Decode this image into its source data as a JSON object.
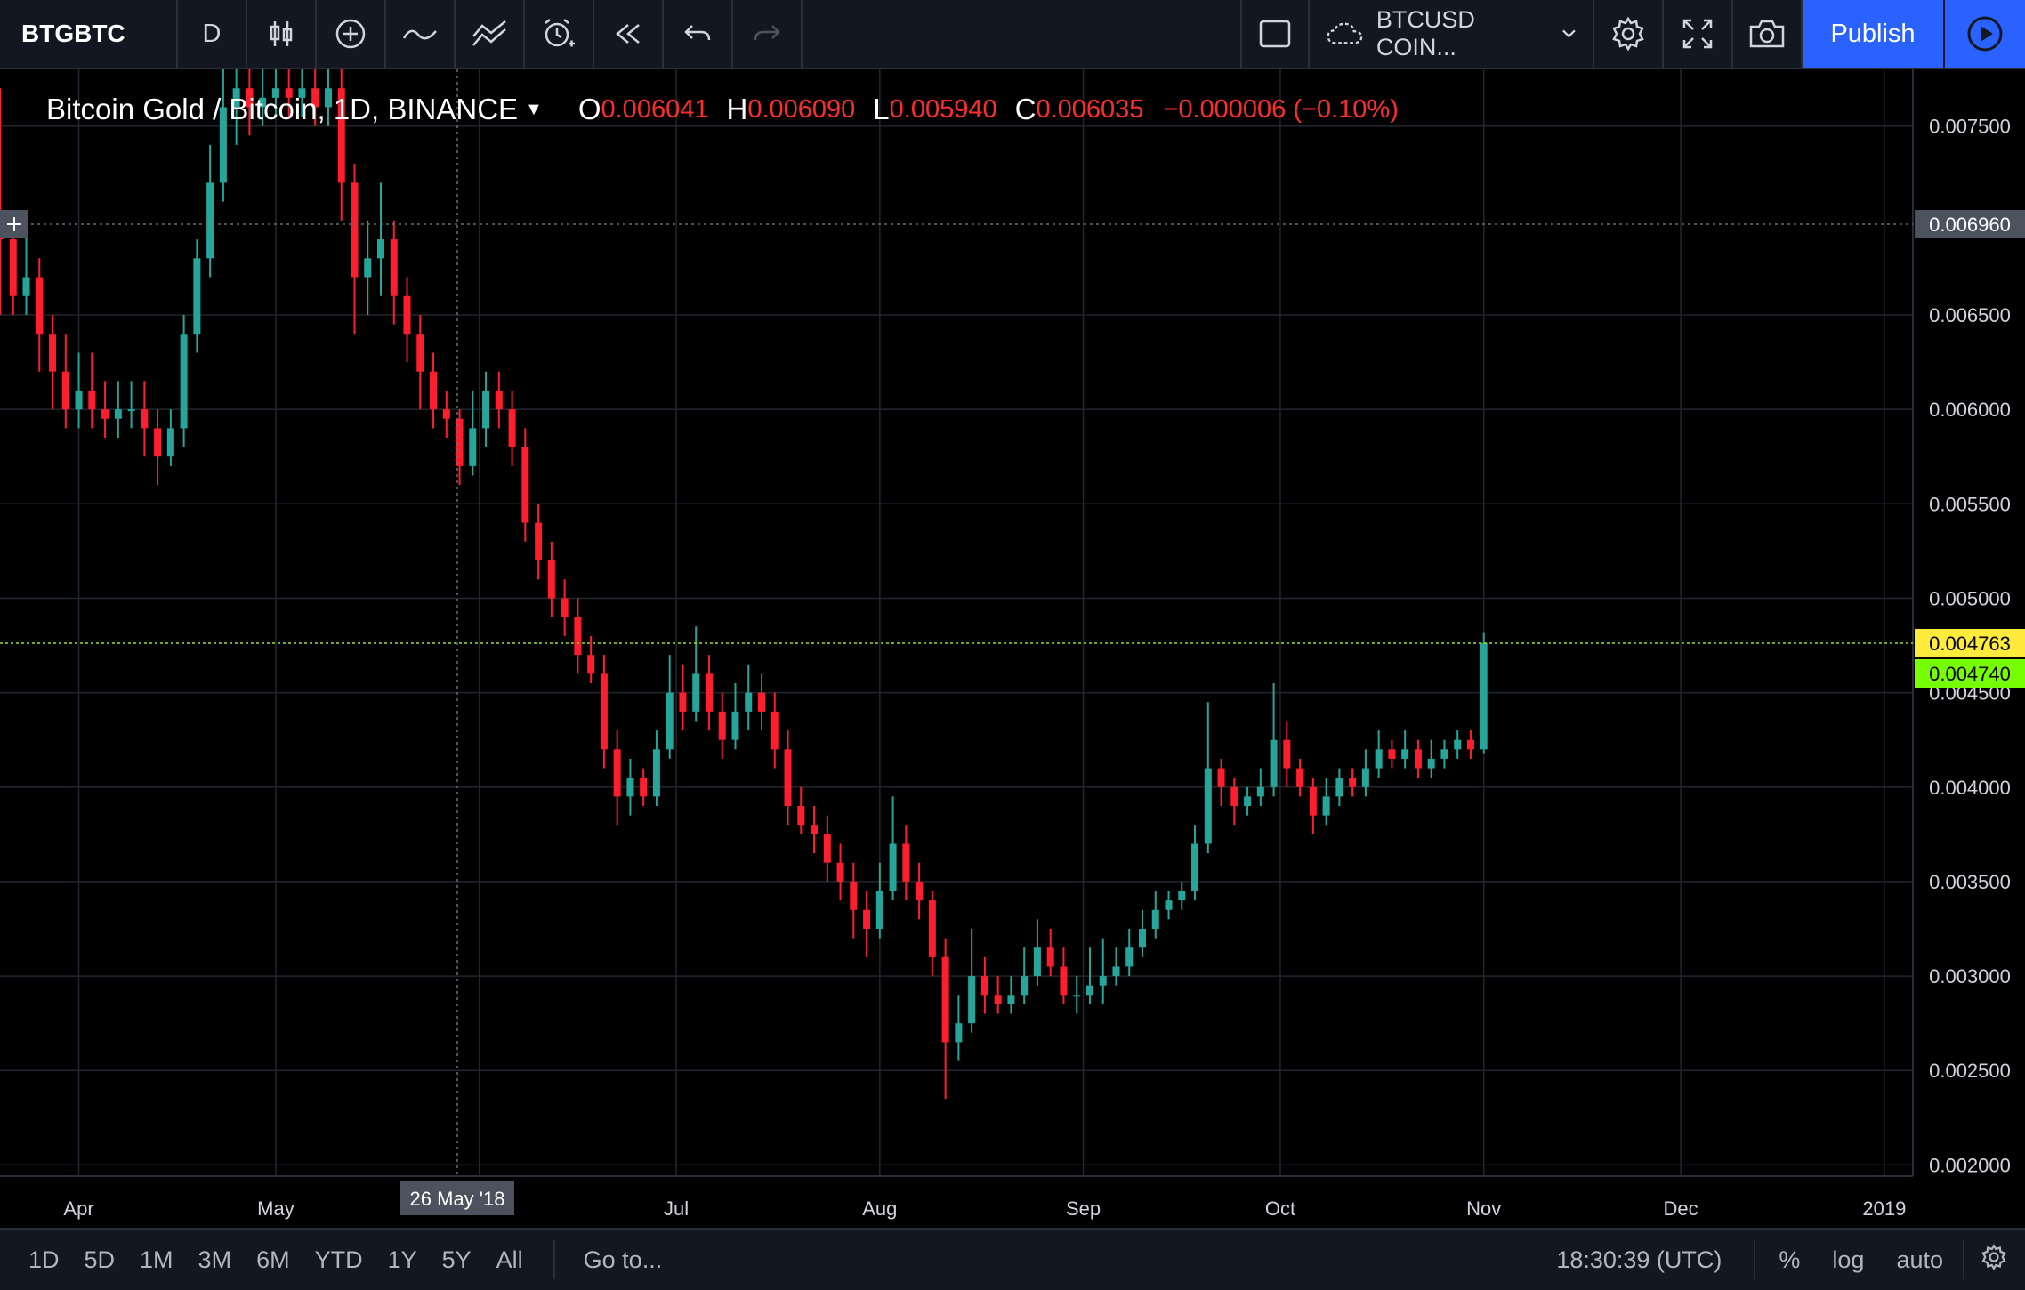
{
  "toolbar": {
    "symbol": "BTGBTC",
    "interval": "D",
    "compare_symbol": "BTCUSD COIN...",
    "publish_label": "Publish"
  },
  "legend": {
    "title": "Bitcoin Gold / Bitcoin, 1D, BINANCE",
    "open_label": "O",
    "open": "0.006041",
    "high_label": "H",
    "high": "0.006090",
    "low_label": "L",
    "low": "0.005940",
    "close_label": "C",
    "close": "0.006035",
    "change": "−0.000006 (−0.10%)"
  },
  "price_axis": {
    "ticks": [
      "0.007500",
      "0.006500",
      "0.006000",
      "0.005500",
      "0.005000",
      "0.004500",
      "0.004000",
      "0.003500",
      "0.003000",
      "0.002500",
      "0.002000"
    ],
    "crosshair_price": "0.006960",
    "last_price": "0.004763",
    "second_price": "0.004740"
  },
  "time_axis": {
    "labels": [
      "Apr",
      "May",
      "Jul",
      "Aug",
      "Sep",
      "Oct",
      "Nov",
      "Dec",
      "2019"
    ],
    "crosshair_date": "26 May '18"
  },
  "bottombar": {
    "ranges": [
      "1D",
      "5D",
      "1M",
      "3M",
      "6M",
      "YTD",
      "1Y",
      "5Y",
      "All"
    ],
    "goto": "Go to...",
    "time": "18:30:39 (UTC)",
    "percent": "%",
    "log": "log",
    "auto": "auto"
  },
  "colors": {
    "up": "#26a69a",
    "down": "#ff1e2d",
    "grid": "#22262f",
    "toolbar_bg": "#131722",
    "accent": "#2962ff",
    "last_price_bg": "#ffeb3b",
    "second_price_bg": "#76ff03"
  },
  "chart_data": {
    "type": "candlestick",
    "ylim": [
      0.00195,
      0.0078
    ],
    "x_range": [
      "2018-03-20",
      "2019-01-04"
    ],
    "series": [
      {
        "date": "2018-03-20",
        "open": 0.007,
        "close": 0.0069,
        "high": 0.0077,
        "low": 0.0065
      },
      {
        "date": "2018-03-22",
        "open": 0.0069,
        "close": 0.0066,
        "high": 0.00705,
        "low": 0.0065
      },
      {
        "date": "2018-03-24",
        "open": 0.0066,
        "close": 0.0067,
        "high": 0.007,
        "low": 0.0065
      },
      {
        "date": "2018-03-26",
        "open": 0.0067,
        "close": 0.0064,
        "high": 0.0068,
        "low": 0.0062
      },
      {
        "date": "2018-03-28",
        "open": 0.0064,
        "close": 0.0062,
        "high": 0.0065,
        "low": 0.006
      },
      {
        "date": "2018-03-30",
        "open": 0.0062,
        "close": 0.006,
        "high": 0.0064,
        "low": 0.0059
      },
      {
        "date": "2018-04-01",
        "open": 0.006,
        "close": 0.0061,
        "high": 0.0063,
        "low": 0.0059
      },
      {
        "date": "2018-04-03",
        "open": 0.0061,
        "close": 0.006,
        "high": 0.0063,
        "low": 0.0059
      },
      {
        "date": "2018-04-05",
        "open": 0.006,
        "close": 0.00595,
        "high": 0.00615,
        "low": 0.00585
      },
      {
        "date": "2018-04-07",
        "open": 0.00595,
        "close": 0.006,
        "high": 0.00615,
        "low": 0.00585
      },
      {
        "date": "2018-04-09",
        "open": 0.006,
        "close": 0.006,
        "high": 0.00615,
        "low": 0.0059
      },
      {
        "date": "2018-04-11",
        "open": 0.006,
        "close": 0.0059,
        "high": 0.00615,
        "low": 0.00575
      },
      {
        "date": "2018-04-13",
        "open": 0.0059,
        "close": 0.00575,
        "high": 0.006,
        "low": 0.0056
      },
      {
        "date": "2018-04-15",
        "open": 0.00575,
        "close": 0.0059,
        "high": 0.006,
        "low": 0.0057
      },
      {
        "date": "2018-04-17",
        "open": 0.0059,
        "close": 0.0064,
        "high": 0.0065,
        "low": 0.0058
      },
      {
        "date": "2018-04-19",
        "open": 0.0064,
        "close": 0.0068,
        "high": 0.0069,
        "low": 0.0063
      },
      {
        "date": "2018-04-21",
        "open": 0.0068,
        "close": 0.0072,
        "high": 0.0074,
        "low": 0.0067
      },
      {
        "date": "2018-04-23",
        "open": 0.0072,
        "close": 0.0076,
        "high": 0.0078,
        "low": 0.0071
      },
      {
        "date": "2018-04-25",
        "open": 0.0076,
        "close": 0.0077,
        "high": 0.0078,
        "low": 0.0074
      },
      {
        "date": "2018-04-27",
        "open": 0.0077,
        "close": 0.0076,
        "high": 0.0078,
        "low": 0.00745
      },
      {
        "date": "2018-04-29",
        "open": 0.0076,
        "close": 0.00765,
        "high": 0.0078,
        "low": 0.0075
      },
      {
        "date": "2018-05-01",
        "open": 0.00765,
        "close": 0.0077,
        "high": 0.0078,
        "low": 0.00755
      },
      {
        "date": "2018-05-03",
        "open": 0.0077,
        "close": 0.00765,
        "high": 0.0078,
        "low": 0.00755
      },
      {
        "date": "2018-05-05",
        "open": 0.00765,
        "close": 0.0077,
        "high": 0.0078,
        "low": 0.00755
      },
      {
        "date": "2018-05-07",
        "open": 0.0077,
        "close": 0.0076,
        "high": 0.0078,
        "low": 0.0075
      },
      {
        "date": "2018-05-09",
        "open": 0.0076,
        "close": 0.0077,
        "high": 0.0078,
        "low": 0.0075
      },
      {
        "date": "2018-05-11",
        "open": 0.0077,
        "close": 0.0072,
        "high": 0.0078,
        "low": 0.007
      },
      {
        "date": "2018-05-13",
        "open": 0.0072,
        "close": 0.0067,
        "high": 0.0073,
        "low": 0.0064
      },
      {
        "date": "2018-05-15",
        "open": 0.0067,
        "close": 0.0068,
        "high": 0.007,
        "low": 0.0065
      },
      {
        "date": "2018-05-17",
        "open": 0.0068,
        "close": 0.0069,
        "high": 0.0072,
        "low": 0.0066
      },
      {
        "date": "2018-05-19",
        "open": 0.0069,
        "close": 0.0066,
        "high": 0.007,
        "low": 0.00645
      },
      {
        "date": "2018-05-21",
        "open": 0.0066,
        "close": 0.0064,
        "high": 0.0067,
        "low": 0.00625
      },
      {
        "date": "2018-05-23",
        "open": 0.0064,
        "close": 0.0062,
        "high": 0.0065,
        "low": 0.006
      },
      {
        "date": "2018-05-25",
        "open": 0.0062,
        "close": 0.006,
        "high": 0.0063,
        "low": 0.0059
      },
      {
        "date": "2018-05-27",
        "open": 0.006,
        "close": 0.00595,
        "high": 0.0061,
        "low": 0.00585
      },
      {
        "date": "2018-05-29",
        "open": 0.00595,
        "close": 0.0057,
        "high": 0.006,
        "low": 0.0056
      },
      {
        "date": "2018-05-31",
        "open": 0.0057,
        "close": 0.0059,
        "high": 0.0061,
        "low": 0.00565
      },
      {
        "date": "2018-06-02",
        "open": 0.0059,
        "close": 0.0061,
        "high": 0.0062,
        "low": 0.0058
      },
      {
        "date": "2018-06-04",
        "open": 0.0061,
        "close": 0.006,
        "high": 0.0062,
        "low": 0.0059
      },
      {
        "date": "2018-06-06",
        "open": 0.006,
        "close": 0.0058,
        "high": 0.0061,
        "low": 0.0057
      },
      {
        "date": "2018-06-08",
        "open": 0.0058,
        "close": 0.0054,
        "high": 0.0059,
        "low": 0.0053
      },
      {
        "date": "2018-06-10",
        "open": 0.0054,
        "close": 0.0052,
        "high": 0.0055,
        "low": 0.0051
      },
      {
        "date": "2018-06-12",
        "open": 0.0052,
        "close": 0.005,
        "high": 0.0053,
        "low": 0.0049
      },
      {
        "date": "2018-06-14",
        "open": 0.005,
        "close": 0.0049,
        "high": 0.0051,
        "low": 0.0048
      },
      {
        "date": "2018-06-16",
        "open": 0.0049,
        "close": 0.0047,
        "high": 0.005,
        "low": 0.0046
      },
      {
        "date": "2018-06-18",
        "open": 0.0047,
        "close": 0.0046,
        "high": 0.0048,
        "low": 0.00455
      },
      {
        "date": "2018-06-20",
        "open": 0.0046,
        "close": 0.0042,
        "high": 0.0047,
        "low": 0.0041
      },
      {
        "date": "2018-06-22",
        "open": 0.0042,
        "close": 0.00395,
        "high": 0.0043,
        "low": 0.0038
      },
      {
        "date": "2018-06-24",
        "open": 0.00395,
        "close": 0.00405,
        "high": 0.00415,
        "low": 0.00385
      },
      {
        "date": "2018-06-26",
        "open": 0.00405,
        "close": 0.00395,
        "high": 0.0041,
        "low": 0.0039
      },
      {
        "date": "2018-06-28",
        "open": 0.00395,
        "close": 0.0042,
        "high": 0.0043,
        "low": 0.0039
      },
      {
        "date": "2018-06-30",
        "open": 0.0042,
        "close": 0.0045,
        "high": 0.0047,
        "low": 0.00415
      },
      {
        "date": "2018-07-02",
        "open": 0.0045,
        "close": 0.0044,
        "high": 0.00465,
        "low": 0.0043
      },
      {
        "date": "2018-07-04",
        "open": 0.0044,
        "close": 0.0046,
        "high": 0.00485,
        "low": 0.00435
      },
      {
        "date": "2018-07-06",
        "open": 0.0046,
        "close": 0.0044,
        "high": 0.0047,
        "low": 0.0043
      },
      {
        "date": "2018-07-08",
        "open": 0.0044,
        "close": 0.00425,
        "high": 0.0045,
        "low": 0.00415
      },
      {
        "date": "2018-07-10",
        "open": 0.00425,
        "close": 0.0044,
        "high": 0.00455,
        "low": 0.0042
      },
      {
        "date": "2018-07-12",
        "open": 0.0044,
        "close": 0.0045,
        "high": 0.00465,
        "low": 0.0043
      },
      {
        "date": "2018-07-14",
        "open": 0.0045,
        "close": 0.0044,
        "high": 0.0046,
        "low": 0.0043
      },
      {
        "date": "2018-07-16",
        "open": 0.0044,
        "close": 0.0042,
        "high": 0.0045,
        "low": 0.0041
      },
      {
        "date": "2018-07-18",
        "open": 0.0042,
        "close": 0.0039,
        "high": 0.0043,
        "low": 0.0038
      },
      {
        "date": "2018-07-20",
        "open": 0.0039,
        "close": 0.0038,
        "high": 0.004,
        "low": 0.00375
      },
      {
        "date": "2018-07-22",
        "open": 0.0038,
        "close": 0.00375,
        "high": 0.0039,
        "low": 0.00365
      },
      {
        "date": "2018-07-24",
        "open": 0.00375,
        "close": 0.0036,
        "high": 0.00385,
        "low": 0.0035
      },
      {
        "date": "2018-07-26",
        "open": 0.0036,
        "close": 0.0035,
        "high": 0.0037,
        "low": 0.0034
      },
      {
        "date": "2018-07-28",
        "open": 0.0035,
        "close": 0.00335,
        "high": 0.0036,
        "low": 0.0032
      },
      {
        "date": "2018-07-30",
        "open": 0.00335,
        "close": 0.00325,
        "high": 0.00345,
        "low": 0.0031
      },
      {
        "date": "2018-08-01",
        "open": 0.00325,
        "close": 0.00345,
        "high": 0.0036,
        "low": 0.0032
      },
      {
        "date": "2018-08-03",
        "open": 0.00345,
        "close": 0.0037,
        "high": 0.00395,
        "low": 0.0034
      },
      {
        "date": "2018-08-05",
        "open": 0.0037,
        "close": 0.0035,
        "high": 0.0038,
        "low": 0.0034
      },
      {
        "date": "2018-08-07",
        "open": 0.0035,
        "close": 0.0034,
        "high": 0.0036,
        "low": 0.0033
      },
      {
        "date": "2018-08-09",
        "open": 0.0034,
        "close": 0.0031,
        "high": 0.00345,
        "low": 0.003
      },
      {
        "date": "2018-08-11",
        "open": 0.0031,
        "close": 0.00265,
        "high": 0.0032,
        "low": 0.00235
      },
      {
        "date": "2018-08-13",
        "open": 0.00265,
        "close": 0.00275,
        "high": 0.0029,
        "low": 0.00255
      },
      {
        "date": "2018-08-15",
        "open": 0.00275,
        "close": 0.003,
        "high": 0.00325,
        "low": 0.0027
      },
      {
        "date": "2018-08-17",
        "open": 0.003,
        "close": 0.0029,
        "high": 0.0031,
        "low": 0.0028
      },
      {
        "date": "2018-08-19",
        "open": 0.0029,
        "close": 0.00285,
        "high": 0.003,
        "low": 0.0028
      },
      {
        "date": "2018-08-21",
        "open": 0.00285,
        "close": 0.0029,
        "high": 0.003,
        "low": 0.0028
      },
      {
        "date": "2018-08-23",
        "open": 0.0029,
        "close": 0.003,
        "high": 0.00315,
        "low": 0.00285
      },
      {
        "date": "2018-08-25",
        "open": 0.003,
        "close": 0.00315,
        "high": 0.0033,
        "low": 0.00295
      },
      {
        "date": "2018-08-27",
        "open": 0.00315,
        "close": 0.00305,
        "high": 0.00325,
        "low": 0.003
      },
      {
        "date": "2018-08-29",
        "open": 0.00305,
        "close": 0.0029,
        "high": 0.00315,
        "low": 0.00285
      },
      {
        "date": "2018-08-31",
        "open": 0.0029,
        "close": 0.0029,
        "high": 0.003,
        "low": 0.0028
      },
      {
        "date": "2018-09-02",
        "open": 0.0029,
        "close": 0.00295,
        "high": 0.00315,
        "low": 0.00285
      },
      {
        "date": "2018-09-04",
        "open": 0.00295,
        "close": 0.003,
        "high": 0.0032,
        "low": 0.00285
      },
      {
        "date": "2018-09-06",
        "open": 0.003,
        "close": 0.00305,
        "high": 0.00315,
        "low": 0.00295
      },
      {
        "date": "2018-09-08",
        "open": 0.00305,
        "close": 0.00315,
        "high": 0.00325,
        "low": 0.003
      },
      {
        "date": "2018-09-10",
        "open": 0.00315,
        "close": 0.00325,
        "high": 0.00335,
        "low": 0.0031
      },
      {
        "date": "2018-09-12",
        "open": 0.00325,
        "close": 0.00335,
        "high": 0.00345,
        "low": 0.0032
      },
      {
        "date": "2018-09-14",
        "open": 0.00335,
        "close": 0.0034,
        "high": 0.00345,
        "low": 0.0033
      },
      {
        "date": "2018-09-16",
        "open": 0.0034,
        "close": 0.00345,
        "high": 0.0035,
        "low": 0.00335
      },
      {
        "date": "2018-09-18",
        "open": 0.00345,
        "close": 0.0037,
        "high": 0.0038,
        "low": 0.0034
      },
      {
        "date": "2018-09-20",
        "open": 0.0037,
        "close": 0.0041,
        "high": 0.00445,
        "low": 0.00365
      },
      {
        "date": "2018-09-22",
        "open": 0.0041,
        "close": 0.004,
        "high": 0.00415,
        "low": 0.0039
      },
      {
        "date": "2018-09-24",
        "open": 0.004,
        "close": 0.0039,
        "high": 0.00405,
        "low": 0.0038
      },
      {
        "date": "2018-09-26",
        "open": 0.0039,
        "close": 0.00395,
        "high": 0.004,
        "low": 0.00385
      },
      {
        "date": "2018-09-28",
        "open": 0.00395,
        "close": 0.004,
        "high": 0.0041,
        "low": 0.0039
      },
      {
        "date": "2018-09-30",
        "open": 0.004,
        "close": 0.00425,
        "high": 0.00455,
        "low": 0.00395
      },
      {
        "date": "2018-10-02",
        "open": 0.00425,
        "close": 0.0041,
        "high": 0.00435,
        "low": 0.004
      },
      {
        "date": "2018-10-04",
        "open": 0.0041,
        "close": 0.004,
        "high": 0.00415,
        "low": 0.00395
      },
      {
        "date": "2018-10-06",
        "open": 0.004,
        "close": 0.00385,
        "high": 0.00405,
        "low": 0.00375
      },
      {
        "date": "2018-10-08",
        "open": 0.00385,
        "close": 0.00395,
        "high": 0.00405,
        "low": 0.0038
      },
      {
        "date": "2018-10-10",
        "open": 0.00395,
        "close": 0.00405,
        "high": 0.0041,
        "low": 0.0039
      },
      {
        "date": "2018-10-12",
        "open": 0.00405,
        "close": 0.004,
        "high": 0.0041,
        "low": 0.00395
      },
      {
        "date": "2018-10-14",
        "open": 0.004,
        "close": 0.0041,
        "high": 0.0042,
        "low": 0.00395
      },
      {
        "date": "2018-10-16",
        "open": 0.0041,
        "close": 0.0042,
        "high": 0.0043,
        "low": 0.00405
      },
      {
        "date": "2018-10-18",
        "open": 0.0042,
        "close": 0.00415,
        "high": 0.00425,
        "low": 0.0041
      },
      {
        "date": "2018-10-20",
        "open": 0.00415,
        "close": 0.0042,
        "high": 0.0043,
        "low": 0.0041
      },
      {
        "date": "2018-10-22",
        "open": 0.0042,
        "close": 0.0041,
        "high": 0.00425,
        "low": 0.00405
      },
      {
        "date": "2018-10-24",
        "open": 0.0041,
        "close": 0.00415,
        "high": 0.00425,
        "low": 0.00405
      },
      {
        "date": "2018-10-26",
        "open": 0.00415,
        "close": 0.0042,
        "high": 0.00425,
        "low": 0.0041
      },
      {
        "date": "2018-10-28",
        "open": 0.0042,
        "close": 0.00425,
        "high": 0.0043,
        "low": 0.00415
      },
      {
        "date": "2018-10-30",
        "open": 0.00425,
        "close": 0.0042,
        "high": 0.0043,
        "low": 0.00415
      },
      {
        "date": "2018-11-01",
        "open": 0.0042,
        "close": 0.004763,
        "high": 0.00482,
        "low": 0.00418
      }
    ]
  }
}
